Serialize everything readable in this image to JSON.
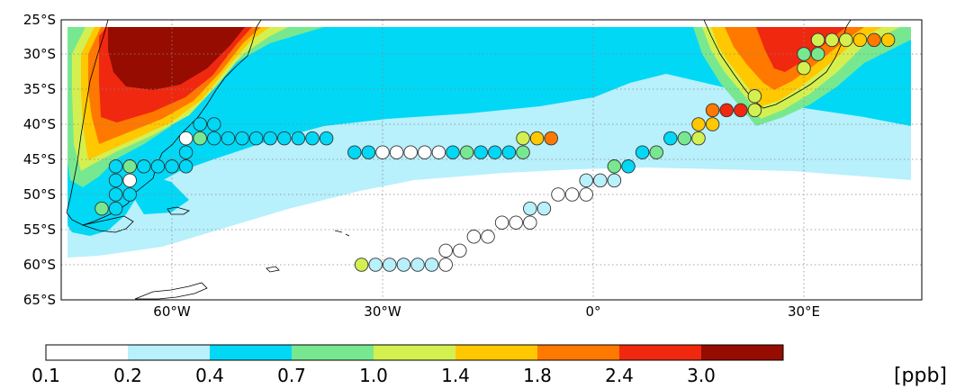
{
  "map": {
    "lat_labels": [
      "25°S",
      "30°S",
      "35°S",
      "40°S",
      "45°S",
      "50°S",
      "55°S",
      "60°S",
      "65°S"
    ],
    "lon_labels": [
      "60°W",
      "30°W",
      "0°",
      "30°E"
    ],
    "lon_range": [
      -80,
      45
    ],
    "lat_range": [
      -65,
      -25
    ]
  },
  "colorbar": {
    "tick_labels": [
      "0.1",
      "0.2",
      "0.4",
      "0.7",
      "1.0",
      "1.4",
      "1.8",
      "2.4",
      "3.0"
    ],
    "unit": "[ppb]",
    "colors": [
      "#ffffff",
      "#b8f0fc",
      "#00d8f6",
      "#78e890",
      "#d4f050",
      "#ffc800",
      "#ff7800",
      "#f02810",
      "#960c00"
    ]
  },
  "chart_data": {
    "type": "scatter",
    "description_fields_visible": false,
    "x_unit": "longitude (degrees, negative = W)",
    "y_unit": "latitude (degrees, negative = S)",
    "points": [
      {
        "lon": -70,
        "lat": -52,
        "v": 0.8
      },
      {
        "lon": -68,
        "lat": -52,
        "v": 0.5
      },
      {
        "lon": -68,
        "lat": -50,
        "v": 0.5
      },
      {
        "lon": -66,
        "lat": -50,
        "v": 0.5
      },
      {
        "lon": -66,
        "lat": -48,
        "v": 0.15
      },
      {
        "lon": -68,
        "lat": -48,
        "v": 0.5
      },
      {
        "lon": -66,
        "lat": -46,
        "v": 0.8
      },
      {
        "lon": -68,
        "lat": -46,
        "v": 0.5
      },
      {
        "lon": -64,
        "lat": -46,
        "v": 0.5
      },
      {
        "lon": -62,
        "lat": -46,
        "v": 0.5
      },
      {
        "lon": -60,
        "lat": -46,
        "v": 0.5
      },
      {
        "lon": -58,
        "lat": -46,
        "v": 0.5
      },
      {
        "lon": -58,
        "lat": -44,
        "v": 0.5
      },
      {
        "lon": -58,
        "lat": -42,
        "v": 0.15
      },
      {
        "lon": -56,
        "lat": -42,
        "v": 0.8
      },
      {
        "lon": -54,
        "lat": -42,
        "v": 0.5
      },
      {
        "lon": -56,
        "lat": -40,
        "v": 0.5
      },
      {
        "lon": -54,
        "lat": -40,
        "v": 0.5
      },
      {
        "lon": -52,
        "lat": -42,
        "v": 0.5
      },
      {
        "lon": -50,
        "lat": -42,
        "v": 0.5
      },
      {
        "lon": -48,
        "lat": -42,
        "v": 0.5
      },
      {
        "lon": -46,
        "lat": -42,
        "v": 0.5
      },
      {
        "lon": -44,
        "lat": -42,
        "v": 0.5
      },
      {
        "lon": -42,
        "lat": -42,
        "v": 0.5
      },
      {
        "lon": -40,
        "lat": -42,
        "v": 0.5
      },
      {
        "lon": -38,
        "lat": -42,
        "v": 0.5
      },
      {
        "lon": -34,
        "lat": -44,
        "v": 0.5
      },
      {
        "lon": -32,
        "lat": -44,
        "v": 0.5
      },
      {
        "lon": -30,
        "lat": -44,
        "v": 0.15
      },
      {
        "lon": -28,
        "lat": -44,
        "v": 0.15
      },
      {
        "lon": -26,
        "lat": -44,
        "v": 0.15
      },
      {
        "lon": -24,
        "lat": -44,
        "v": 0.15
      },
      {
        "lon": -22,
        "lat": -44,
        "v": 0.15
      },
      {
        "lon": -20,
        "lat": -44,
        "v": 0.5
      },
      {
        "lon": -18,
        "lat": -44,
        "v": 0.8
      },
      {
        "lon": -16,
        "lat": -44,
        "v": 0.5
      },
      {
        "lon": -14,
        "lat": -44,
        "v": 0.5
      },
      {
        "lon": -12,
        "lat": -44,
        "v": 0.5
      },
      {
        "lon": -10,
        "lat": -44,
        "v": 0.8
      },
      {
        "lon": -10,
        "lat": -42,
        "v": 1.2
      },
      {
        "lon": -8,
        "lat": -42,
        "v": 1.6
      },
      {
        "lon": -6,
        "lat": -42,
        "v": 2.0
      },
      {
        "lon": -33,
        "lat": -60,
        "v": 1.2
      },
      {
        "lon": -31,
        "lat": -60,
        "v": 0.3
      },
      {
        "lon": -29,
        "lat": -60,
        "v": 0.3
      },
      {
        "lon": -27,
        "lat": -60,
        "v": 0.3
      },
      {
        "lon": -25,
        "lat": -60,
        "v": 0.3
      },
      {
        "lon": -23,
        "lat": -60,
        "v": 0.3
      },
      {
        "lon": -21,
        "lat": -60,
        "v": 0.15
      },
      {
        "lon": -21,
        "lat": -58,
        "v": 0.15
      },
      {
        "lon": -19,
        "lat": -58,
        "v": 0.15
      },
      {
        "lon": -17,
        "lat": -56,
        "v": 0.15
      },
      {
        "lon": -15,
        "lat": -56,
        "v": 0.15
      },
      {
        "lon": -13,
        "lat": -54,
        "v": 0.15
      },
      {
        "lon": -11,
        "lat": -54,
        "v": 0.15
      },
      {
        "lon": -9,
        "lat": -54,
        "v": 0.15
      },
      {
        "lon": -9,
        "lat": -52,
        "v": 0.3
      },
      {
        "lon": -7,
        "lat": -52,
        "v": 0.3
      },
      {
        "lon": -5,
        "lat": -50,
        "v": 0.15
      },
      {
        "lon": -3,
        "lat": -50,
        "v": 0.15
      },
      {
        "lon": -1,
        "lat": -50,
        "v": 0.15
      },
      {
        "lon": 1,
        "lat": -48,
        "v": 0.3
      },
      {
        "lon": -1,
        "lat": -48,
        "v": 0.3
      },
      {
        "lon": 3,
        "lat": -48,
        "v": 0.3
      },
      {
        "lon": 3,
        "lat": -46,
        "v": 0.8
      },
      {
        "lon": 5,
        "lat": -46,
        "v": 0.5
      },
      {
        "lon": 7,
        "lat": -44,
        "v": 0.5
      },
      {
        "lon": 9,
        "lat": -44,
        "v": 0.8
      },
      {
        "lon": 11,
        "lat": -42,
        "v": 0.5
      },
      {
        "lon": 13,
        "lat": -42,
        "v": 0.8
      },
      {
        "lon": 15,
        "lat": -42,
        "v": 1.2
      },
      {
        "lon": 15,
        "lat": -40,
        "v": 1.6
      },
      {
        "lon": 17,
        "lat": -40,
        "v": 1.6
      },
      {
        "lon": 17,
        "lat": -38,
        "v": 2.0
      },
      {
        "lon": 19,
        "lat": -38,
        "v": 2.6
      },
      {
        "lon": 21,
        "lat": -38,
        "v": 2.6
      },
      {
        "lon": 23,
        "lat": -38,
        "v": 1.2
      },
      {
        "lon": 23,
        "lat": -36,
        "v": 1.2
      },
      {
        "lon": 30,
        "lat": -32,
        "v": 1.2
      },
      {
        "lon": 30,
        "lat": -30,
        "v": 0.8
      },
      {
        "lon": 32,
        "lat": -30,
        "v": 0.8
      },
      {
        "lon": 32,
        "lat": -28,
        "v": 1.2
      },
      {
        "lon": 34,
        "lat": -28,
        "v": 1.2
      },
      {
        "lon": 36,
        "lat": -28,
        "v": 1.2
      },
      {
        "lon": 38,
        "lat": -28,
        "v": 1.6
      },
      {
        "lon": 40,
        "lat": -28,
        "v": 2.0
      },
      {
        "lon": 42,
        "lat": -28,
        "v": 1.6
      }
    ]
  }
}
